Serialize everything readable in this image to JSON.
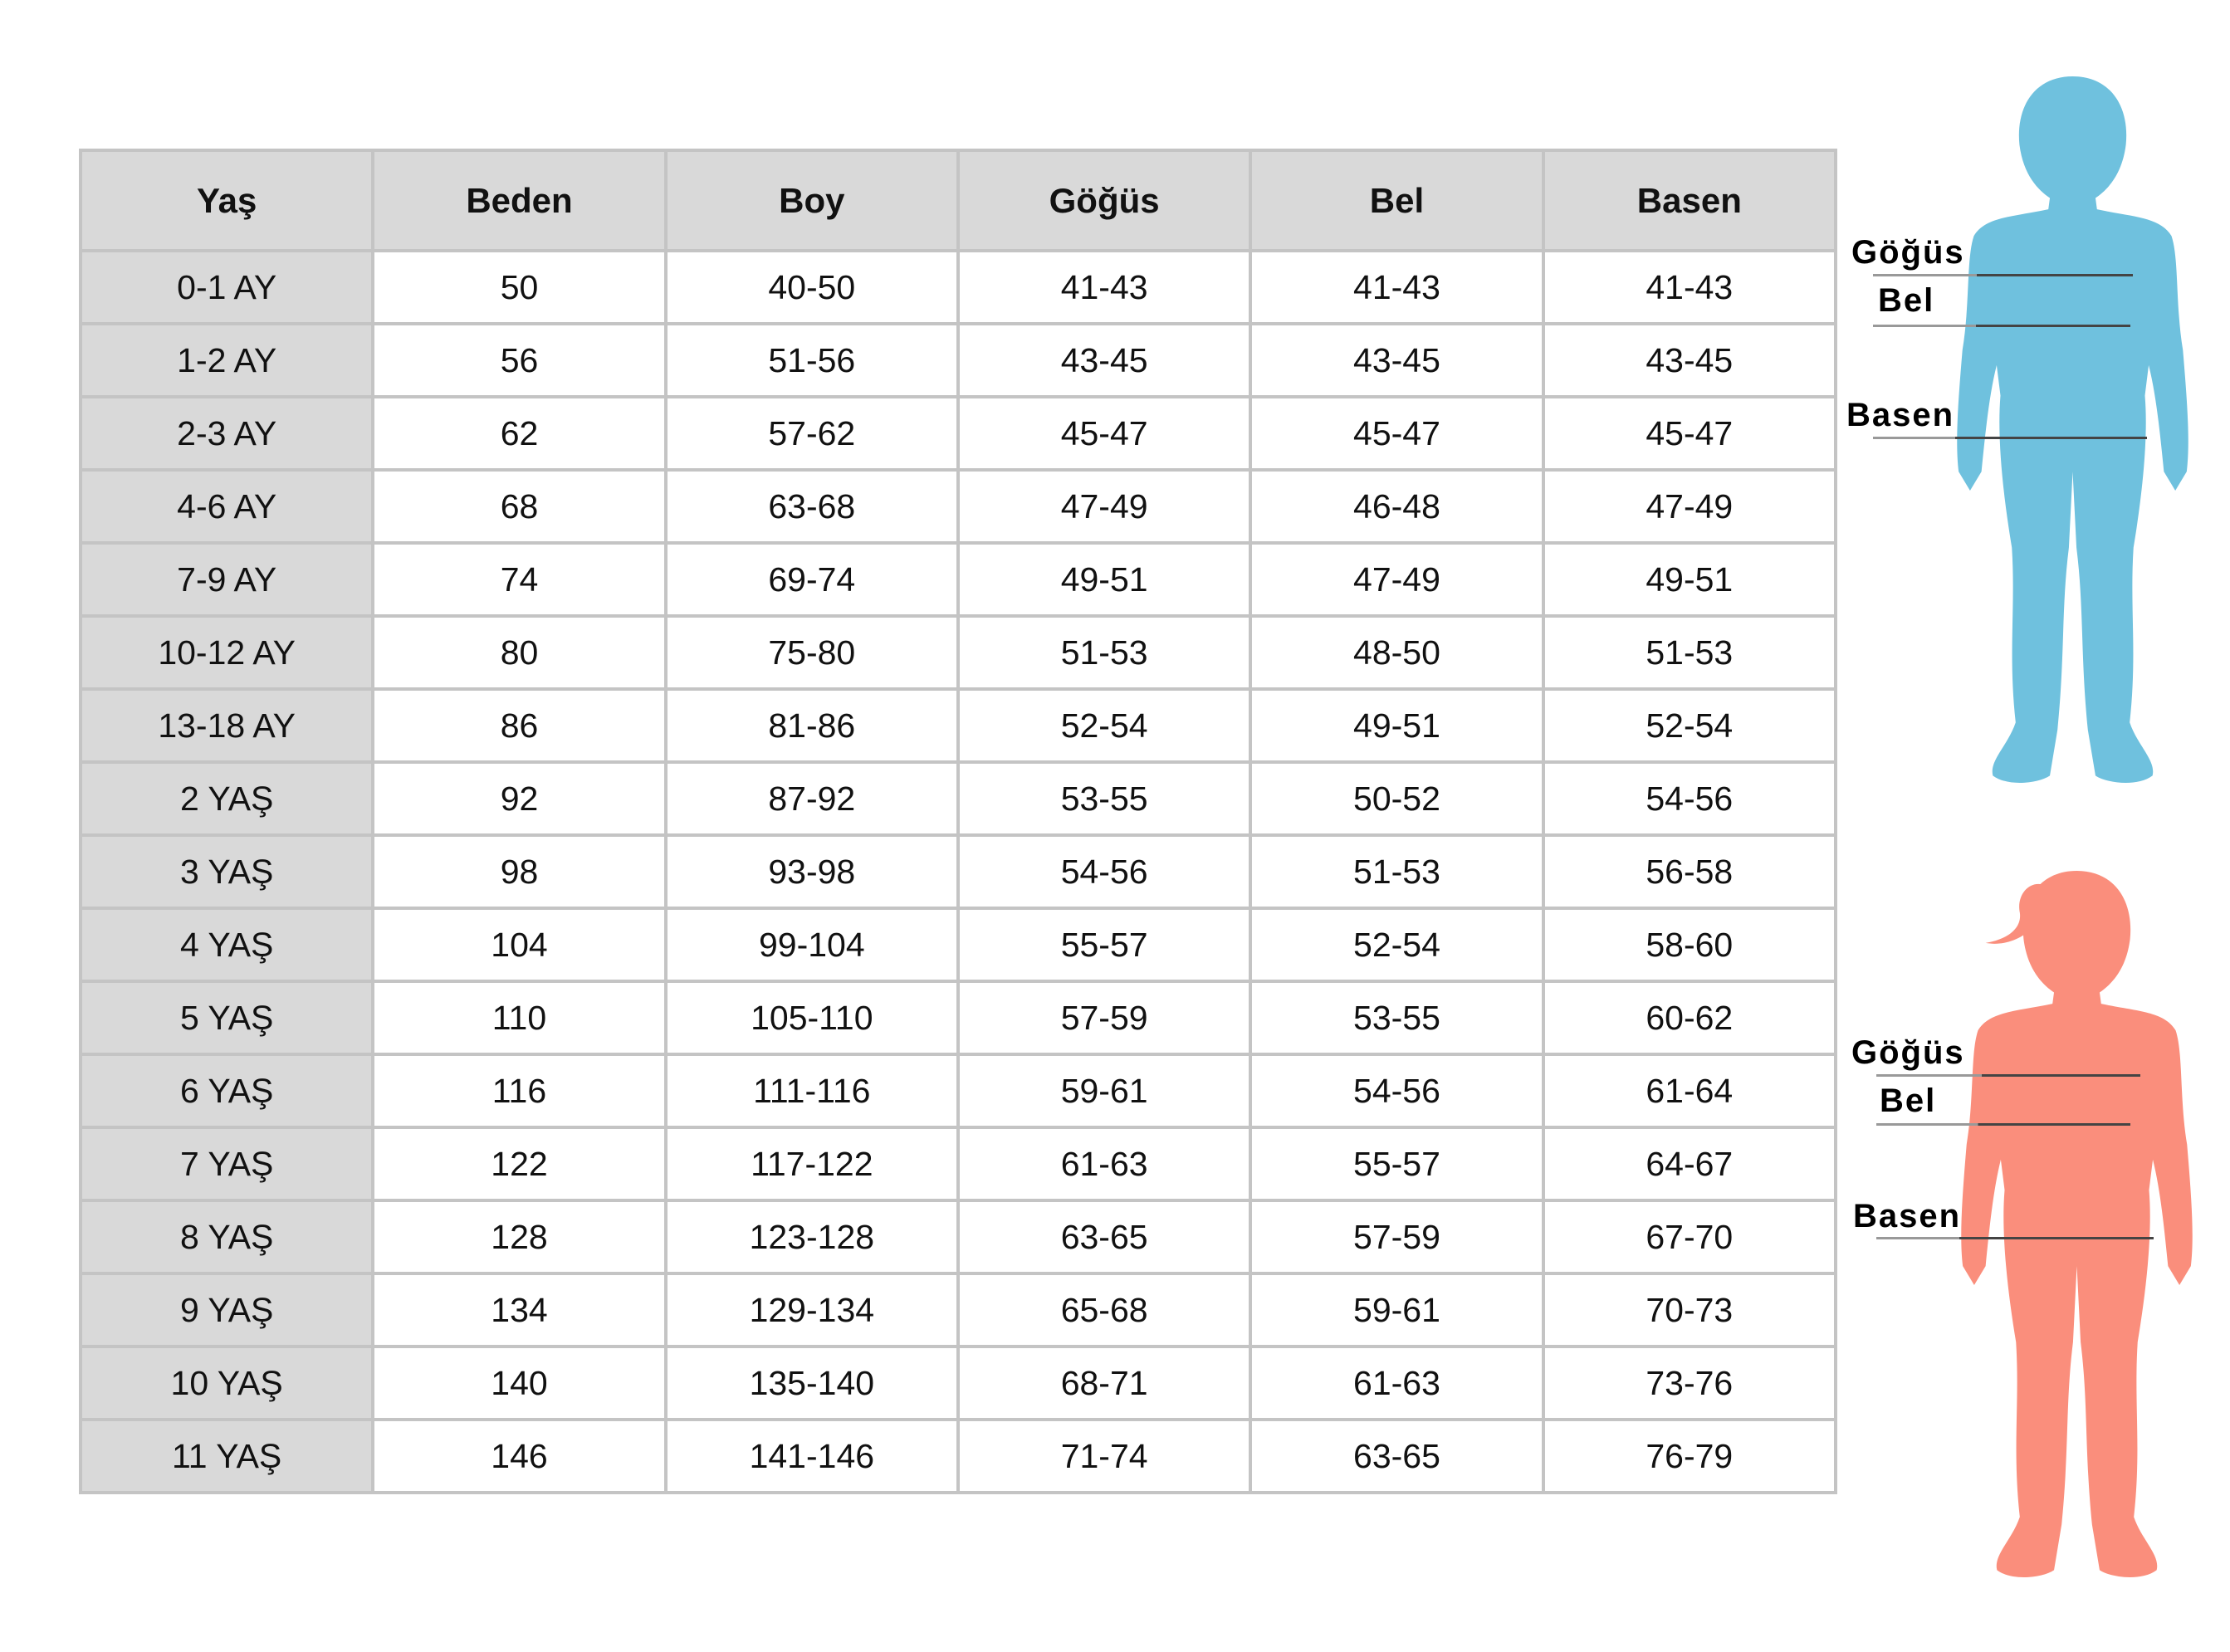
{
  "table": {
    "headers": [
      "Yaş",
      "Beden",
      "Boy",
      "Göğüs",
      "Bel",
      "Basen"
    ],
    "rows": [
      [
        "0-1 AY",
        "50",
        "40-50",
        "41-43",
        "41-43",
        "41-43"
      ],
      [
        "1-2 AY",
        "56",
        "51-56",
        "43-45",
        "43-45",
        "43-45"
      ],
      [
        "2-3 AY",
        "62",
        "57-62",
        "45-47",
        "45-47",
        "45-47"
      ],
      [
        "4-6 AY",
        "68",
        "63-68",
        "47-49",
        "46-48",
        "47-49"
      ],
      [
        "7-9 AY",
        "74",
        "69-74",
        "49-51",
        "47-49",
        "49-51"
      ],
      [
        "10-12 AY",
        "80",
        "75-80",
        "51-53",
        "48-50",
        "51-53"
      ],
      [
        "13-18 AY",
        "86",
        "81-86",
        "52-54",
        "49-51",
        "52-54"
      ],
      [
        "2 YAŞ",
        "92",
        "87-92",
        "53-55",
        "50-52",
        "54-56"
      ],
      [
        "3 YAŞ",
        "98",
        "93-98",
        "54-56",
        "51-53",
        "56-58"
      ],
      [
        "4 YAŞ",
        "104",
        "99-104",
        "55-57",
        "52-54",
        "58-60"
      ],
      [
        "5 YAŞ",
        "110",
        "105-110",
        "57-59",
        "53-55",
        "60-62"
      ],
      [
        "6 YAŞ",
        "116",
        "111-116",
        "59-61",
        "54-56",
        "61-64"
      ],
      [
        "7 YAŞ",
        "122",
        "117-122",
        "61-63",
        "55-57",
        "64-67"
      ],
      [
        "8 YAŞ",
        "128",
        "123-128",
        "63-65",
        "57-59",
        "67-70"
      ],
      [
        "9 YAŞ",
        "134",
        "129-134",
        "65-68",
        "59-61",
        "70-73"
      ],
      [
        "10 YAŞ",
        "140",
        "135-140",
        "68-71",
        "61-63",
        "73-76"
      ],
      [
        "11 YAŞ",
        "146",
        "141-146",
        "71-74",
        "63-65",
        "76-79"
      ]
    ]
  },
  "figures": {
    "boy": {
      "color": "#6fc1de",
      "labels": {
        "chest": "Göğüs",
        "waist": "Bel",
        "hip": "Basen"
      }
    },
    "girl": {
      "color": "#fa8e7c",
      "labels": {
        "chest": "Göğüs",
        "waist": "Bel",
        "hip": "Basen"
      }
    }
  }
}
